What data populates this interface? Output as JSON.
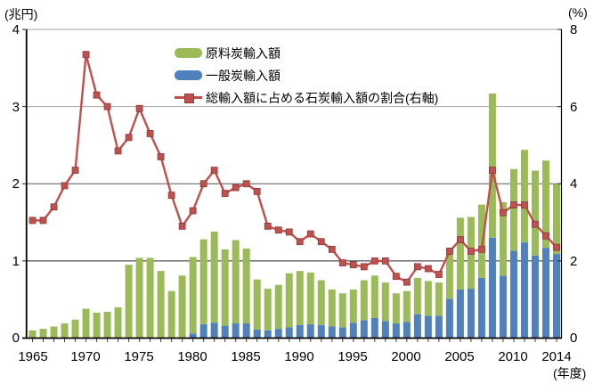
{
  "chart_data": {
    "type": "bar+line",
    "title": "",
    "x_unit_label": "(年度)",
    "left_axis": {
      "unit": "(兆円)",
      "min": 0,
      "max": 4,
      "ticks": [
        "4",
        "3",
        "2",
        "1",
        "0"
      ]
    },
    "right_axis": {
      "unit": "(%)",
      "min": 0,
      "max": 8,
      "ticks": [
        "8",
        "6",
        "4",
        "2",
        "0"
      ]
    },
    "x_axis": {
      "tick_labels": [
        "1965",
        "1970",
        "1975",
        "1980",
        "1985",
        "1990",
        "1995",
        "2000",
        "2005",
        "2010",
        "2014"
      ]
    },
    "years": [
      1965,
      1966,
      1967,
      1968,
      1969,
      1970,
      1971,
      1972,
      1973,
      1974,
      1975,
      1976,
      1977,
      1978,
      1979,
      1980,
      1981,
      1982,
      1983,
      1984,
      1985,
      1986,
      1987,
      1988,
      1989,
      1990,
      1991,
      1992,
      1993,
      1994,
      1995,
      1996,
      1997,
      1998,
      1999,
      2000,
      2001,
      2002,
      2003,
      2004,
      2005,
      2006,
      2007,
      2008,
      2009,
      2010,
      2011,
      2012,
      2013,
      2014
    ],
    "series": [
      {
        "name": "原料炭輸入額",
        "type": "bar",
        "axis": "left",
        "color": "#9BBB59",
        "values": [
          0.1,
          0.12,
          0.15,
          0.19,
          0.24,
          0.38,
          0.33,
          0.34,
          0.4,
          0.95,
          1.04,
          1.04,
          0.87,
          0.61,
          0.81,
          0.99,
          1.1,
          1.18,
          0.99,
          1.08,
          0.97,
          0.65,
          0.54,
          0.57,
          0.7,
          0.7,
          0.67,
          0.58,
          0.48,
          0.44,
          0.43,
          0.52,
          0.55,
          0.5,
          0.39,
          0.4,
          0.47,
          0.45,
          0.43,
          0.66,
          0.93,
          0.93,
          0.95,
          1.87,
          0.95,
          1.06,
          1.2,
          1.1,
          1.13,
          0.91
        ]
      },
      {
        "name": "一般炭輸入額",
        "type": "bar",
        "axis": "left",
        "color": "#4F81BD",
        "values": [
          0,
          0,
          0,
          0,
          0,
          0,
          0,
          0,
          0,
          0,
          0,
          0,
          0,
          0,
          0,
          0.06,
          0.18,
          0.2,
          0.16,
          0.19,
          0.19,
          0.11,
          0.1,
          0.12,
          0.14,
          0.17,
          0.18,
          0.17,
          0.15,
          0.14,
          0.2,
          0.23,
          0.26,
          0.22,
          0.19,
          0.21,
          0.31,
          0.29,
          0.29,
          0.51,
          0.63,
          0.64,
          0.78,
          1.3,
          0.81,
          1.13,
          1.24,
          1.07,
          1.17,
          1.09
        ]
      },
      {
        "name": "総輸入額に占める石炭輸入額の割合(右軸)",
        "type": "line",
        "axis": "right",
        "color": "#C0504D",
        "values": [
          3.05,
          3.05,
          3.4,
          3.95,
          4.35,
          7.35,
          6.3,
          6.0,
          4.85,
          5.2,
          5.95,
          5.3,
          4.7,
          3.7,
          2.9,
          3.3,
          4.0,
          4.35,
          3.75,
          3.9,
          4.0,
          3.8,
          2.9,
          2.8,
          2.75,
          2.5,
          2.7,
          2.5,
          2.3,
          1.95,
          1.9,
          1.85,
          2.0,
          2.0,
          1.6,
          1.45,
          1.85,
          1.8,
          1.65,
          2.25,
          2.55,
          2.25,
          2.3,
          4.35,
          3.25,
          3.45,
          3.45,
          2.95,
          2.65,
          2.35
        ]
      }
    ],
    "legend_position": "top-center-inside",
    "grid": "horizontal"
  },
  "legend": {
    "items": [
      {
        "label": "原料炭輸入額",
        "color": "#9BBB59"
      },
      {
        "label": "一般炭輸入額",
        "color": "#4F81BD"
      },
      {
        "label": "総輸入額に占める石炭輸入額の割合(右軸)",
        "color": "#C0504D"
      }
    ]
  }
}
